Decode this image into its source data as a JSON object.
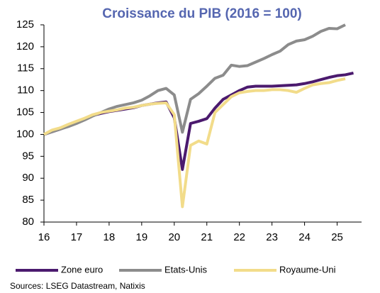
{
  "chart_data": {
    "type": "line",
    "title": "Croissance du PIB (2016 = 100)",
    "x": [
      16,
      16.25,
      16.5,
      16.75,
      17,
      17.25,
      17.5,
      17.75,
      18,
      18.25,
      18.5,
      18.75,
      19,
      19.25,
      19.5,
      19.75,
      20,
      20.25,
      20.5,
      20.75,
      21,
      21.25,
      21.5,
      21.75,
      22,
      22.25,
      22.5,
      22.75,
      23,
      23.25,
      23.5,
      23.75,
      24,
      24.25,
      24.5,
      24.75,
      25,
      25.25,
      25.5
    ],
    "series": [
      {
        "name": "Zone euro",
        "color": "#4b1a6e",
        "values": [
          100,
          100.6,
          101.2,
          102,
          102.8,
          103.6,
          104.3,
          104.8,
          105.2,
          105.5,
          105.8,
          106.1,
          106.6,
          106.9,
          107.2,
          107.4,
          103.8,
          92,
          102.5,
          103,
          103.6,
          106,
          108,
          109,
          110,
          110.8,
          111,
          111,
          111,
          111.1,
          111.2,
          111.3,
          111.6,
          112,
          112.5,
          113,
          113.4,
          113.6,
          114
        ]
      },
      {
        "name": "Etats-Unis",
        "color": "#8c8c8c",
        "values": [
          100,
          100.6,
          101.2,
          101.8,
          102.5,
          103.3,
          104.2,
          105,
          105.8,
          106.4,
          106.8,
          107.2,
          107.8,
          108.8,
          110,
          110.5,
          109,
          100.5,
          108,
          109.3,
          111,
          112.8,
          113.5,
          115.8,
          115.5,
          115.7,
          116.5,
          117.3,
          118.2,
          119,
          120.5,
          121.3,
          121.6,
          122.4,
          123.5,
          124.2,
          124.1,
          125,
          null
        ]
      },
      {
        "name": "Royaume-Uni",
        "color": "#f2dc8a",
        "values": [
          100,
          101,
          101.5,
          102.3,
          103,
          103.7,
          104.5,
          105,
          105.3,
          105.6,
          106,
          106.2,
          106.6,
          106.9,
          107.1,
          107.2,
          104.5,
          83.5,
          97.5,
          98.5,
          97.8,
          105,
          106.8,
          108.6,
          109.5,
          109.8,
          110,
          110,
          110.2,
          110.2,
          110,
          109.6,
          110.5,
          111.3,
          111.6,
          111.8,
          112.3,
          112.7,
          null
        ]
      }
    ],
    "xlim": [
      16,
      25.75
    ],
    "xticks": [
      16,
      17,
      18,
      19,
      20,
      21,
      22,
      23,
      24,
      25
    ],
    "ylim": [
      80,
      125
    ],
    "yticks": [
      80,
      85,
      90,
      95,
      100,
      105,
      110,
      115,
      120,
      125
    ],
    "grid": false,
    "legend": "bottom",
    "source": "Sources: LSEG Datastream, Natixis"
  }
}
